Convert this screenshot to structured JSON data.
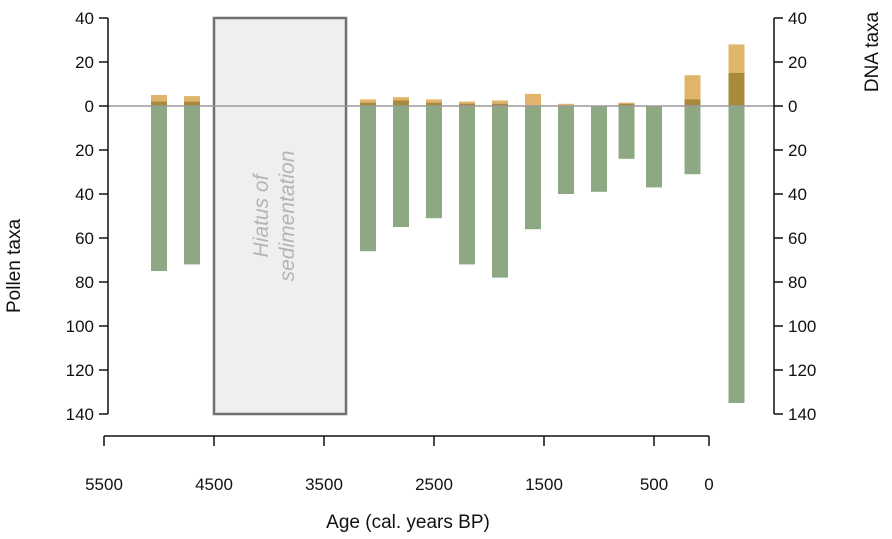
{
  "chart_data": {
    "type": "bar",
    "xlabel": "Age (cal. years BP)",
    "ylabel_left": "Pollen taxa",
    "ylabel_right": "DNA taxa",
    "x_ticks": [
      "5500",
      "4500",
      "3500",
      "2500",
      "1500",
      "500",
      "0"
    ],
    "left_ticks_up": [
      "40",
      "20",
      "0"
    ],
    "left_ticks_down": [
      "20",
      "40",
      "60",
      "80",
      "100",
      "120",
      "140"
    ],
    "right_ticks_up": [
      "40",
      "20",
      "0"
    ],
    "right_ticks_down": [
      "20",
      "40",
      "60",
      "80",
      "100",
      "120",
      "140"
    ],
    "ylim_up": [
      0,
      40
    ],
    "ylim_down": [
      0,
      140
    ],
    "xlim": [
      5500,
      0
    ],
    "hiatus": {
      "label_line1": "Hiatus of",
      "label_line2": "sedimentation",
      "x_range": [
        4500,
        3300
      ]
    },
    "series": [
      {
        "key": "dna_up",
        "color": "#e0b46a"
      },
      {
        "key": "pollen_down",
        "color": "#8da883"
      },
      {
        "key": "pollen_up",
        "color": "#a88a3c"
      }
    ],
    "bars": [
      {
        "age": 5000,
        "dna_up": 5,
        "pollen_down": 75,
        "pollen_up": 2
      },
      {
        "age": 4700,
        "dna_up": 4.5,
        "pollen_down": 72,
        "pollen_up": 2
      },
      {
        "age": 3100,
        "dna_up": 3,
        "pollen_down": 66,
        "pollen_up": 1.5
      },
      {
        "age": 2800,
        "dna_up": 4,
        "pollen_down": 55,
        "pollen_up": 2.5
      },
      {
        "age": 2500,
        "dna_up": 3,
        "pollen_down": 51,
        "pollen_up": 1.5
      },
      {
        "age": 2200,
        "dna_up": 2,
        "pollen_down": 72,
        "pollen_up": 1
      },
      {
        "age": 1900,
        "dna_up": 2.5,
        "pollen_down": 78,
        "pollen_up": 1
      },
      {
        "age": 1600,
        "dna_up": 5.5,
        "pollen_down": 56,
        "pollen_up": 0
      },
      {
        "age": 1300,
        "dna_up": 1,
        "pollen_down": 40,
        "pollen_up": 0
      },
      {
        "age": 1000,
        "dna_up": 0,
        "pollen_down": 39,
        "pollen_up": 0
      },
      {
        "age": 750,
        "dna_up": 1.5,
        "pollen_down": 24,
        "pollen_up": 1
      },
      {
        "age": 500,
        "dna_up": 0,
        "pollen_down": 37,
        "pollen_up": 0
      },
      {
        "age": 150,
        "dna_up": 14,
        "pollen_down": 31,
        "pollen_up": 3
      },
      {
        "age": -250,
        "dna_up": 28,
        "pollen_down": 135,
        "pollen_up": 15
      }
    ]
  }
}
